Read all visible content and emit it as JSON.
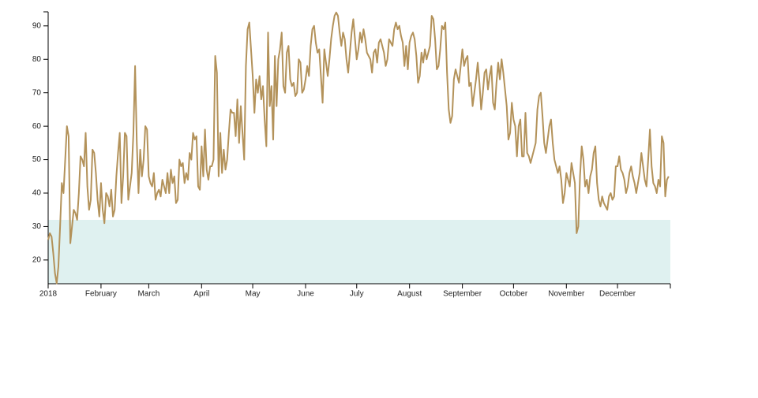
{
  "chart_data": {
    "type": "line",
    "xlim": [
      0,
      365
    ],
    "xticks": [
      {
        "value": 0,
        "label": "2018"
      },
      {
        "value": 31,
        "label": "February"
      },
      {
        "value": 59,
        "label": "March"
      },
      {
        "value": 90,
        "label": "April"
      },
      {
        "value": 120,
        "label": "May"
      },
      {
        "value": 151,
        "label": "June"
      },
      {
        "value": 181,
        "label": "July"
      },
      {
        "value": 212,
        "label": "August"
      },
      {
        "value": 243,
        "label": "September"
      },
      {
        "value": 273,
        "label": "October"
      },
      {
        "value": 304,
        "label": "November"
      },
      {
        "value": 334,
        "label": "December"
      }
    ],
    "ylim": [
      12.9,
      94.2
    ],
    "yticks": [
      20,
      30,
      40,
      50,
      60,
      70,
      80,
      90
    ],
    "band": {
      "to": 32,
      "color": "#dff1f0"
    },
    "series": [
      {
        "color": "#b3925a",
        "x": [
          0,
          1,
          2,
          3,
          4,
          5,
          6,
          7,
          8,
          9,
          10,
          11,
          12,
          13,
          14,
          15,
          16,
          17,
          18,
          19,
          20,
          21,
          22,
          23,
          24,
          25,
          26,
          27,
          28,
          29,
          30,
          31,
          32,
          33,
          34,
          35,
          36,
          37,
          38,
          39,
          40,
          41,
          42,
          43,
          44,
          45,
          46,
          47,
          48,
          49,
          50,
          51,
          52,
          53,
          54,
          55,
          56,
          57,
          58,
          59,
          60,
          61,
          62,
          63,
          64,
          65,
          66,
          67,
          68,
          69,
          70,
          71,
          72,
          73,
          74,
          75,
          76,
          77,
          78,
          79,
          80,
          81,
          82,
          83,
          84,
          85,
          86,
          87,
          88,
          89,
          90,
          91,
          92,
          93,
          94,
          95,
          96,
          97,
          98,
          99,
          100,
          101,
          102,
          103,
          104,
          105,
          106,
          107,
          108,
          109,
          110,
          111,
          112,
          113,
          114,
          115,
          116,
          117,
          118,
          119,
          120,
          121,
          122,
          123,
          124,
          125,
          126,
          127,
          128,
          129,
          130,
          131,
          132,
          133,
          134,
          135,
          136,
          137,
          138,
          139,
          140,
          141,
          142,
          143,
          144,
          145,
          146,
          147,
          148,
          149,
          150,
          151,
          152,
          153,
          154,
          155,
          156,
          157,
          158,
          159,
          160,
          161,
          162,
          163,
          164,
          165,
          166,
          167,
          168,
          169,
          170,
          171,
          172,
          173,
          174,
          175,
          176,
          177,
          178,
          179,
          180,
          181,
          182,
          183,
          184,
          185,
          186,
          187,
          188,
          189,
          190,
          191,
          192,
          193,
          194,
          195,
          196,
          197,
          198,
          199,
          200,
          201,
          202,
          203,
          204,
          205,
          206,
          207,
          208,
          209,
          210,
          211,
          212,
          213,
          214,
          215,
          216,
          217,
          218,
          219,
          220,
          221,
          222,
          223,
          224,
          225,
          226,
          227,
          228,
          229,
          230,
          231,
          232,
          233,
          234,
          235,
          236,
          237,
          238,
          239,
          240,
          241,
          242,
          243,
          244,
          245,
          246,
          247,
          248,
          249,
          250,
          251,
          252,
          253,
          254,
          255,
          256,
          257,
          258,
          259,
          260,
          261,
          262,
          263,
          264,
          265,
          266,
          267,
          268,
          269,
          270,
          271,
          272,
          273,
          274,
          275,
          276,
          277,
          278,
          279,
          280,
          281,
          282,
          283,
          284,
          285,
          286,
          287,
          288,
          289,
          290,
          291,
          292,
          293,
          294,
          295,
          296,
          297,
          298,
          299,
          300,
          301,
          302,
          303,
          304,
          305,
          306,
          307,
          308,
          309,
          310,
          311,
          312,
          313,
          314,
          315,
          316,
          317,
          318,
          319,
          320,
          321,
          322,
          323,
          324,
          325,
          326,
          327,
          328,
          329,
          330,
          331,
          332,
          333,
          334,
          335,
          336,
          337,
          338,
          339,
          340,
          341,
          342,
          343,
          344,
          345,
          346,
          347,
          348,
          349,
          350,
          351,
          352,
          353,
          354,
          355,
          356,
          357,
          358,
          359,
          360,
          361,
          362,
          363,
          364
        ],
        "values": [
          26,
          28,
          27,
          22,
          16,
          13,
          18,
          30,
          43,
          40,
          50,
          60,
          57,
          25,
          30,
          35,
          34,
          32,
          40,
          51,
          50,
          48,
          58,
          42,
          35,
          38,
          53,
          52,
          46,
          38,
          33,
          43,
          35,
          31,
          40,
          39,
          36,
          41,
          33,
          35,
          45,
          52,
          58,
          37,
          45,
          58,
          57,
          38,
          42,
          46,
          58,
          78,
          55,
          40,
          53,
          45,
          50,
          60,
          59,
          45,
          43,
          42,
          46,
          38,
          40,
          41,
          39,
          44,
          42,
          40,
          46,
          40,
          47,
          43,
          45,
          37,
          38,
          50,
          48,
          49,
          43,
          46,
          44,
          52,
          50,
          58,
          56,
          57,
          42,
          41,
          54,
          45,
          59,
          47,
          44,
          48,
          48,
          50,
          81,
          76,
          45,
          58,
          46,
          53,
          47,
          50,
          58,
          65,
          64,
          64,
          57,
          68,
          55,
          66,
          58,
          50,
          78,
          89,
          91,
          83,
          75,
          64,
          74,
          70,
          75,
          68,
          72,
          62,
          54,
          88,
          66,
          72,
          56,
          81,
          66,
          80,
          83,
          88,
          72,
          70,
          82,
          84,
          74,
          72,
          73,
          69,
          70,
          80,
          79,
          70,
          71,
          74,
          78,
          75,
          84,
          89,
          90,
          85,
          82,
          83,
          75,
          67,
          83,
          79,
          75,
          80,
          86,
          90,
          93,
          94,
          93,
          88,
          84,
          88,
          86,
          80,
          76,
          82,
          88,
          92,
          86,
          80,
          83,
          88,
          85,
          89,
          86,
          82,
          81,
          80,
          76,
          82,
          83,
          79,
          85,
          86,
          84,
          82,
          78,
          80,
          86,
          85,
          84,
          89,
          91,
          89,
          90,
          87,
          85,
          78,
          84,
          77,
          85,
          87,
          88,
          86,
          81,
          73,
          75,
          82,
          79,
          83,
          80,
          82,
          84,
          93,
          92,
          86,
          77,
          78,
          83,
          90,
          89,
          91,
          76,
          65,
          61,
          63,
          74,
          77,
          75,
          73,
          78,
          83,
          78,
          80,
          81,
          72,
          73,
          66,
          70,
          74,
          79,
          73,
          65,
          70,
          76,
          77,
          71,
          75,
          78,
          67,
          65,
          73,
          79,
          74,
          80,
          76,
          71,
          66,
          56,
          58,
          67,
          62,
          60,
          51,
          60,
          62,
          51,
          51,
          64,
          52,
          51,
          49,
          51,
          53,
          55,
          65,
          69,
          70,
          63,
          55,
          52,
          56,
          60,
          62,
          55,
          50,
          48,
          46,
          48,
          44,
          37,
          40,
          46,
          44,
          42,
          49,
          46,
          43,
          28,
          30,
          45,
          54,
          50,
          42,
          44,
          40,
          45,
          47,
          52,
          54,
          43,
          38,
          36,
          39,
          37,
          36,
          35,
          39,
          40,
          38,
          39,
          48,
          48,
          51,
          47,
          46,
          44,
          40,
          42,
          46,
          48,
          45,
          43,
          40,
          43,
          46,
          52,
          48,
          44,
          42,
          50,
          59,
          48,
          43,
          42,
          40,
          44,
          42,
          57,
          55,
          39,
          44,
          45
        ]
      }
    ]
  }
}
